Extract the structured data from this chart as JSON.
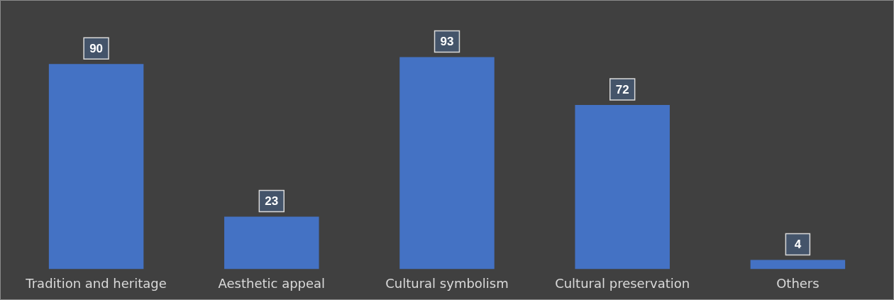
{
  "chart_data": {
    "type": "bar",
    "categories": [
      "Tradition and heritage",
      "Aesthetic appeal",
      "Cultural symbolism",
      "Cultural preservation",
      "Others"
    ],
    "values": [
      90,
      23,
      93,
      72,
      4
    ],
    "color": "#4472c4",
    "data_labels": true
  }
}
